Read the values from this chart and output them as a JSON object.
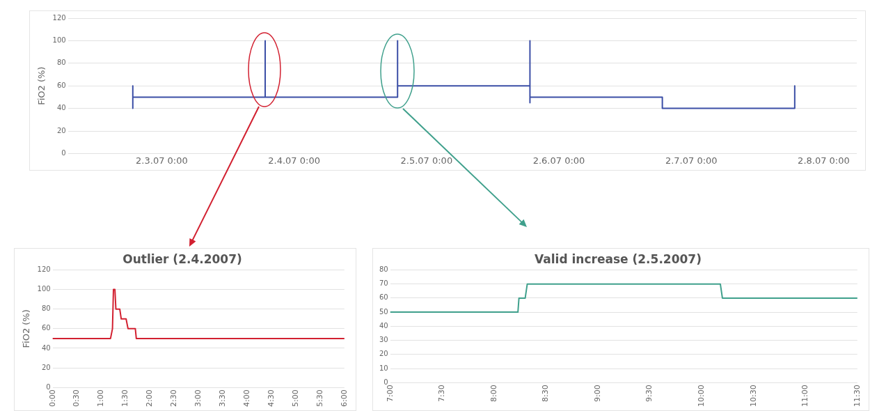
{
  "chart_data": [
    {
      "type": "line",
      "ylabel": "FiO2 (%)",
      "color": "#3b4ea6",
      "x": [
        "2007-02-02T18:45",
        "2007-02-02T18:45",
        "2007-02-02T18:45",
        "2007-02-03T18:45",
        "2007-02-03T18:45",
        "2007-02-03T18:45",
        "2007-02-04T18:45",
        "2007-02-04T18:45",
        "2007-02-04T18:45",
        "2007-02-05T18:45",
        "2007-02-05T18:45",
        "2007-02-05T18:45",
        "2007-02-05T18:45",
        "2007-02-06T18:45",
        "2007-02-06T18:45",
        "2007-02-07T18:45",
        "2007-02-07T18:45"
      ],
      "values": [
        40,
        60,
        50,
        50,
        100,
        50,
        50,
        100,
        60,
        60,
        100,
        45,
        50,
        50,
        40,
        40,
        60
      ],
      "xlim": [
        "2007-02-02T07:00",
        "2007-02-08T06:00"
      ],
      "xticks": [
        {
          "value": "2007-02-03T00:00",
          "label": "2.3.07 0:00"
        },
        {
          "value": "2007-02-04T00:00",
          "label": "2.4.07 0:00"
        },
        {
          "value": "2007-02-05T00:00",
          "label": "2.5.07 0:00"
        },
        {
          "value": "2007-02-06T00:00",
          "label": "2.6.07 0:00"
        },
        {
          "value": "2007-02-07T00:00",
          "label": "2.7.07 0:00"
        },
        {
          "value": "2007-02-08T00:00",
          "label": "2.8.07 0:00"
        }
      ],
      "ylim": [
        0,
        120
      ],
      "yticks": [
        0,
        20,
        40,
        60,
        80,
        100,
        120
      ],
      "grid": "y",
      "marker": "none",
      "line_style": "solid"
    },
    {
      "type": "line",
      "title": "Outlier (2.4.2007)",
      "ylabel": "FiO2 (%)",
      "color": "#d22030",
      "x": [
        0,
        1.19,
        1.23,
        1.25,
        1.28,
        1.3,
        1.38,
        1.41,
        1.51,
        1.55,
        1.7,
        1.72,
        6
      ],
      "values": [
        50,
        50,
        60,
        100,
        100,
        80,
        80,
        70,
        70,
        60,
        60,
        50,
        50
      ],
      "xlim": [
        0,
        6
      ],
      "xticks": [
        {
          "value": 0,
          "label": "0:00"
        },
        {
          "value": 0.5,
          "label": "0:30"
        },
        {
          "value": 1,
          "label": "1:00"
        },
        {
          "value": 1.5,
          "label": "1:30"
        },
        {
          "value": 2,
          "label": "2:00"
        },
        {
          "value": 2.5,
          "label": "2:30"
        },
        {
          "value": 3,
          "label": "3:00"
        },
        {
          "value": 3.5,
          "label": "3:30"
        },
        {
          "value": 4,
          "label": "4:00"
        },
        {
          "value": 4.5,
          "label": "4:30"
        },
        {
          "value": 5,
          "label": "5:00"
        },
        {
          "value": 5.5,
          "label": "5:30"
        },
        {
          "value": 6,
          "label": "6:00"
        }
      ],
      "ylim": [
        0,
        120
      ],
      "yticks": [
        0,
        20,
        40,
        60,
        80,
        100,
        120
      ],
      "grid": "y",
      "marker": "none",
      "line_style": "solid"
    },
    {
      "type": "line",
      "title": "Valid increase (2.5.2007)",
      "color": "#3fa08c",
      "x": [
        7,
        8.23,
        8.24,
        8.3,
        8.32,
        10.18,
        10.2,
        11.5
      ],
      "values": [
        50,
        50,
        60,
        60,
        70,
        70,
        60,
        60
      ],
      "xlim": [
        7,
        11.5
      ],
      "xticks": [
        {
          "value": 7,
          "label": "7:00"
        },
        {
          "value": 7.5,
          "label": "7:30"
        },
        {
          "value": 8,
          "label": "8:00"
        },
        {
          "value": 8.5,
          "label": "8:30"
        },
        {
          "value": 9,
          "label": "9:00"
        },
        {
          "value": 9.5,
          "label": "9:30"
        },
        {
          "value": 10,
          "label": "10:00"
        },
        {
          "value": 10.5,
          "label": "10:30"
        },
        {
          "value": 11,
          "label": "11:00"
        },
        {
          "value": 11.5,
          "label": "11:30"
        }
      ],
      "ylim": [
        0,
        80
      ],
      "yticks": [
        0,
        10,
        20,
        30,
        40,
        50,
        60,
        70,
        80
      ],
      "grid": "y",
      "marker": "none",
      "line_style": "solid"
    }
  ]
}
